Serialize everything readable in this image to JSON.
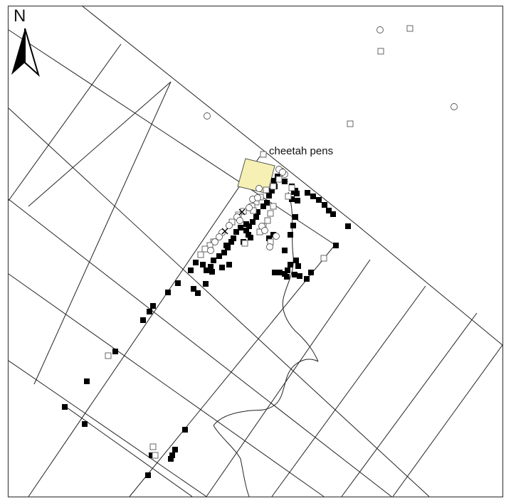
{
  "north_arrow": {
    "label": "N",
    "icon": "north-arrow-icon"
  },
  "labels": {
    "pens": "cheetah pens"
  },
  "colors": {
    "frame": "#444444",
    "grid": "#222222",
    "river": "#222222",
    "pen_fill": "#f7f0b4",
    "marker_filled": "#000000",
    "marker_open_fill": "#ffffff",
    "marker_open_stroke": "#555555"
  },
  "legend_symbols": [
    "filled-square-marker",
    "open-square-marker",
    "open-circle-marker",
    "x-marker"
  ]
}
